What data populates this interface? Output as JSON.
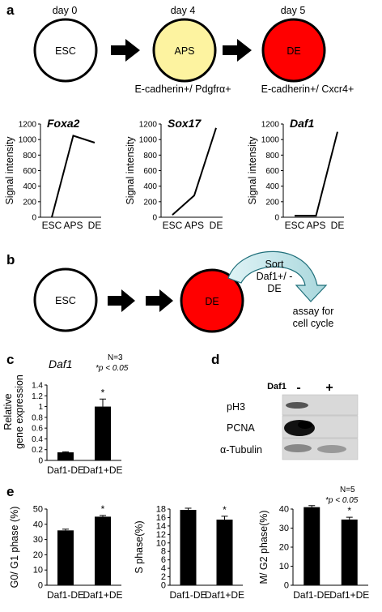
{
  "panel_a": {
    "letter": "a",
    "days": [
      "day 0",
      "day 4",
      "day 5"
    ],
    "stages": [
      {
        "label": "ESC",
        "color": "#ffffff"
      },
      {
        "label": "APS",
        "color": "#fdf3a0"
      },
      {
        "label": "DE",
        "color": "#ff0000"
      }
    ],
    "aps_marker": "E-cadherin+/ Pdgfrα+",
    "de_marker": "E-cadherin+/ Cxcr4+"
  },
  "panel_b": {
    "letter": "b",
    "esc_label": "ESC",
    "de_label": "DE",
    "sort_lines": [
      "Sort",
      "Daf1+/ -",
      "DE"
    ],
    "assay_lines": [
      "assay for",
      "cell cycle"
    ]
  },
  "panel_c": {
    "letter": "c",
    "gene": "Daf1",
    "stats_n": "N=3",
    "stats_p": "*p < 0.05",
    "ylabel_line1": "Relative",
    "ylabel_line2": "gene expression",
    "star": "*"
  },
  "panel_d": {
    "letter": "d",
    "column_header": "Daf1",
    "lane_minus": "-",
    "lane_plus": "+",
    "rows": [
      "pH3",
      "PCNA",
      "α-Tubulin"
    ]
  },
  "panel_e": {
    "letter": "e",
    "stats_n": "N=5",
    "stats_p": "*p < 0.05"
  },
  "chart_data": [
    {
      "type": "line",
      "ylabel": "Signal intensity",
      "gene": "Foxa2",
      "categories": [
        "ESC",
        "APS",
        "DE"
      ],
      "values": [
        0,
        1050,
        960
      ],
      "ylim": [
        0,
        1200
      ],
      "yticks": [
        0,
        200,
        400,
        600,
        800,
        1000,
        1200
      ]
    },
    {
      "type": "line",
      "ylabel": "Signal intensity",
      "gene": "Sox17",
      "categories": [
        "ESC",
        "APS",
        "DE"
      ],
      "values": [
        30,
        280,
        1150
      ],
      "ylim": [
        0,
        1200
      ],
      "yticks": [
        0,
        200,
        400,
        600,
        800,
        1000,
        1200
      ]
    },
    {
      "type": "line",
      "ylabel": "Signal intensity",
      "gene": "Daf1",
      "categories": [
        "ESC",
        "APS",
        "DE"
      ],
      "values": [
        20,
        20,
        1100
      ],
      "ylim": [
        0,
        1200
      ],
      "yticks": [
        0,
        200,
        400,
        600,
        800,
        1000,
        1200
      ]
    },
    {
      "type": "bar",
      "ylabel": "Relative gene expression",
      "categories": [
        "Daf1-DE",
        "Daf1+DE"
      ],
      "values": [
        0.15,
        1.0
      ],
      "errors": [
        0.01,
        0.14
      ],
      "ylim": [
        0,
        1.4
      ],
      "yticks": [
        0,
        0.2,
        0.4,
        0.6,
        0.8,
        1,
        1.2,
        1.4
      ],
      "significant": [
        false,
        true
      ]
    },
    {
      "type": "bar",
      "ylabel": "G0/ G1 phase (%)",
      "categories": [
        "Daf1-DE",
        "Daf1+DE"
      ],
      "values": [
        36,
        45
      ],
      "errors": [
        0.8,
        0.8
      ],
      "ylim": [
        0,
        50
      ],
      "yticks": [
        0,
        10,
        20,
        30,
        40,
        50
      ],
      "significant": [
        false,
        true
      ]
    },
    {
      "type": "bar",
      "ylabel": "S phase(%)",
      "categories": [
        "Daf1-DE",
        "Daf1+DE"
      ],
      "values": [
        17.8,
        15.5
      ],
      "errors": [
        0.4,
        0.8
      ],
      "ylim": [
        0,
        18
      ],
      "yticks": [
        0,
        2,
        4,
        6,
        8,
        10,
        12,
        14,
        16,
        18
      ],
      "significant": [
        false,
        true
      ]
    },
    {
      "type": "bar",
      "ylabel": "M/ G2 phase(%)",
      "categories": [
        "Daf1-DE",
        "Daf1+DE"
      ],
      "values": [
        41,
        34.5
      ],
      "errors": [
        0.8,
        1.2
      ],
      "ylim": [
        0,
        40
      ],
      "yticks": [
        0,
        10,
        20,
        30,
        40
      ],
      "significant": [
        false,
        true
      ]
    }
  ]
}
